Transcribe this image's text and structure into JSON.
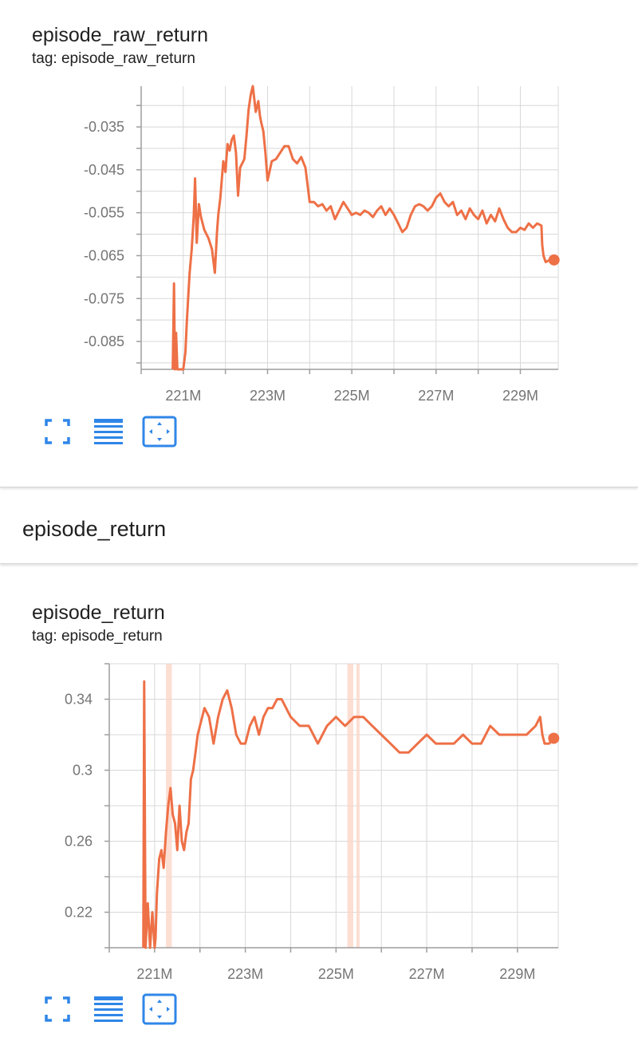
{
  "panels": [
    {
      "title": "episode_raw_return",
      "tag": "tag: episode_raw_return"
    },
    {
      "title": "episode_return",
      "tag": "tag: episode_return"
    }
  ],
  "section": {
    "title": "episode_return"
  },
  "toolbar": {
    "icons": [
      "fullscreen-icon",
      "data-table-icon",
      "fit-domain-icon"
    ]
  },
  "colors": {
    "series": "#ee7046",
    "highlight": "#fbd6c8",
    "grid": "#d8d8d8",
    "axis": "#9e9e9e",
    "toolbar": "#2f86e8"
  },
  "chart_data": [
    {
      "type": "line",
      "title": "episode_raw_return",
      "x_unit": "M",
      "xlim": [
        220.0,
        229.9
      ],
      "ylim": [
        -0.0915,
        -0.0255
      ],
      "x_ticks": [
        221,
        223,
        225,
        227,
        229
      ],
      "x_tick_labels": [
        "221M",
        "223M",
        "225M",
        "227M",
        "229M"
      ],
      "y_ticks": [
        -0.035,
        -0.045,
        -0.055,
        -0.065,
        -0.075,
        -0.085
      ],
      "y_tick_labels": [
        "-0.035",
        "-0.045",
        "-0.055",
        "-0.065",
        "-0.075",
        "-0.085"
      ],
      "grid": true,
      "series": [
        {
          "x": [
            220.75,
            220.78,
            220.8,
            220.83,
            220.86,
            220.9,
            220.95,
            221.0,
            221.05,
            221.08,
            221.12,
            221.15,
            221.2,
            221.25,
            221.28,
            221.32,
            221.37,
            221.42,
            221.5,
            221.55,
            221.6,
            221.68,
            221.75,
            221.8,
            221.83,
            221.88,
            221.95,
            222.0,
            222.05,
            222.1,
            222.15,
            222.2,
            222.25,
            222.3,
            222.35,
            222.45,
            222.5,
            222.55,
            222.6,
            222.65,
            222.72,
            222.78,
            222.82,
            222.85,
            222.9,
            222.95,
            223.0,
            223.1,
            223.2,
            223.3,
            223.4,
            223.5,
            223.6,
            223.7,
            223.8,
            223.9,
            224.0,
            224.1,
            224.2,
            224.3,
            224.4,
            224.5,
            224.6,
            224.7,
            224.8,
            224.9,
            225.0,
            225.1,
            225.2,
            225.3,
            225.4,
            225.5,
            225.6,
            225.7,
            225.8,
            225.9,
            226.0,
            226.1,
            226.2,
            226.3,
            226.4,
            226.5,
            226.6,
            226.7,
            226.8,
            226.9,
            227.0,
            227.1,
            227.2,
            227.3,
            227.4,
            227.5,
            227.6,
            227.7,
            227.8,
            227.9,
            228.0,
            228.1,
            228.2,
            228.3,
            228.4,
            228.5,
            228.6,
            228.7,
            228.8,
            228.9,
            229.0,
            229.1,
            229.2,
            229.3,
            229.4,
            229.5,
            229.52,
            229.55,
            229.6,
            229.7,
            229.8
          ],
          "y": [
            -0.0915,
            -0.0715,
            -0.0915,
            -0.083,
            -0.0915,
            -0.0915,
            -0.0915,
            -0.0915,
            -0.0875,
            -0.081,
            -0.074,
            -0.069,
            -0.0635,
            -0.0555,
            -0.047,
            -0.062,
            -0.053,
            -0.056,
            -0.059,
            -0.06,
            -0.061,
            -0.0635,
            -0.069,
            -0.0595,
            -0.0555,
            -0.0515,
            -0.043,
            -0.0455,
            -0.039,
            -0.0405,
            -0.038,
            -0.037,
            -0.041,
            -0.051,
            -0.0445,
            -0.0425,
            -0.037,
            -0.031,
            -0.0275,
            -0.0255,
            -0.0315,
            -0.029,
            -0.0325,
            -0.034,
            -0.036,
            -0.041,
            -0.0475,
            -0.043,
            -0.0425,
            -0.041,
            -0.0395,
            -0.0395,
            -0.0425,
            -0.0435,
            -0.042,
            -0.0445,
            -0.0525,
            -0.0525,
            -0.0535,
            -0.053,
            -0.0545,
            -0.0535,
            -0.0565,
            -0.0545,
            -0.0525,
            -0.054,
            -0.0555,
            -0.055,
            -0.0555,
            -0.0545,
            -0.055,
            -0.056,
            -0.0545,
            -0.0535,
            -0.0555,
            -0.054,
            -0.0555,
            -0.0575,
            -0.0595,
            -0.0585,
            -0.0555,
            -0.0535,
            -0.053,
            -0.0535,
            -0.0545,
            -0.0535,
            -0.0515,
            -0.0505,
            -0.0525,
            -0.0535,
            -0.0525,
            -0.0555,
            -0.0545,
            -0.0565,
            -0.054,
            -0.0555,
            -0.0565,
            -0.0545,
            -0.0575,
            -0.0555,
            -0.057,
            -0.054,
            -0.0565,
            -0.0585,
            -0.0595,
            -0.0595,
            -0.0585,
            -0.059,
            -0.0575,
            -0.0585,
            -0.0575,
            -0.058,
            -0.0625,
            -0.065,
            -0.0665,
            -0.066,
            -0.066
          ]
        }
      ]
    },
    {
      "type": "line",
      "title": "episode_return",
      "x_unit": "M",
      "xlim": [
        220.0,
        229.9
      ],
      "ylim": [
        0.2,
        0.36
      ],
      "x_ticks": [
        221,
        223,
        225,
        227,
        229
      ],
      "x_tick_labels": [
        "221M",
        "223M",
        "225M",
        "227M",
        "229M"
      ],
      "y_ticks": [
        0.34,
        0.3,
        0.26,
        0.22
      ],
      "y_tick_labels": [
        "0.34",
        "0.3",
        "0.26",
        "0.22"
      ],
      "grid": true,
      "highlight_bands": [
        [
          221.25,
          221.38
        ],
        [
          225.25,
          225.38
        ],
        [
          225.45,
          225.52
        ]
      ],
      "series": [
        {
          "x": [
            220.75,
            220.77,
            220.8,
            220.85,
            220.9,
            220.95,
            221.0,
            221.02,
            221.05,
            221.1,
            221.15,
            221.2,
            221.25,
            221.3,
            221.35,
            221.4,
            221.45,
            221.5,
            221.55,
            221.6,
            221.65,
            221.7,
            221.75,
            221.8,
            221.85,
            221.9,
            221.95,
            222.0,
            222.1,
            222.2,
            222.3,
            222.4,
            222.5,
            222.6,
            222.7,
            222.8,
            222.9,
            223.0,
            223.1,
            223.2,
            223.3,
            223.4,
            223.5,
            223.6,
            223.7,
            223.8,
            223.9,
            224.0,
            224.2,
            224.4,
            224.6,
            224.8,
            225.0,
            225.2,
            225.4,
            225.6,
            225.8,
            226.0,
            226.2,
            226.4,
            226.6,
            226.8,
            227.0,
            227.2,
            227.4,
            227.6,
            227.8,
            228.0,
            228.2,
            228.4,
            228.6,
            228.8,
            229.0,
            229.2,
            229.4,
            229.5,
            229.55,
            229.6,
            229.7,
            229.8
          ],
          "y": [
            0.2,
            0.35,
            0.2,
            0.225,
            0.2,
            0.22,
            0.2,
            0.205,
            0.23,
            0.25,
            0.255,
            0.245,
            0.265,
            0.28,
            0.29,
            0.275,
            0.27,
            0.255,
            0.28,
            0.26,
            0.255,
            0.265,
            0.27,
            0.295,
            0.3,
            0.31,
            0.32,
            0.325,
            0.335,
            0.33,
            0.315,
            0.33,
            0.34,
            0.345,
            0.335,
            0.32,
            0.315,
            0.315,
            0.325,
            0.33,
            0.32,
            0.33,
            0.335,
            0.335,
            0.34,
            0.34,
            0.335,
            0.33,
            0.325,
            0.325,
            0.315,
            0.325,
            0.33,
            0.325,
            0.33,
            0.33,
            0.325,
            0.32,
            0.315,
            0.31,
            0.31,
            0.315,
            0.32,
            0.315,
            0.315,
            0.315,
            0.32,
            0.315,
            0.315,
            0.325,
            0.32,
            0.32,
            0.32,
            0.32,
            0.325,
            0.33,
            0.32,
            0.315,
            0.315,
            0.318
          ]
        }
      ]
    }
  ]
}
